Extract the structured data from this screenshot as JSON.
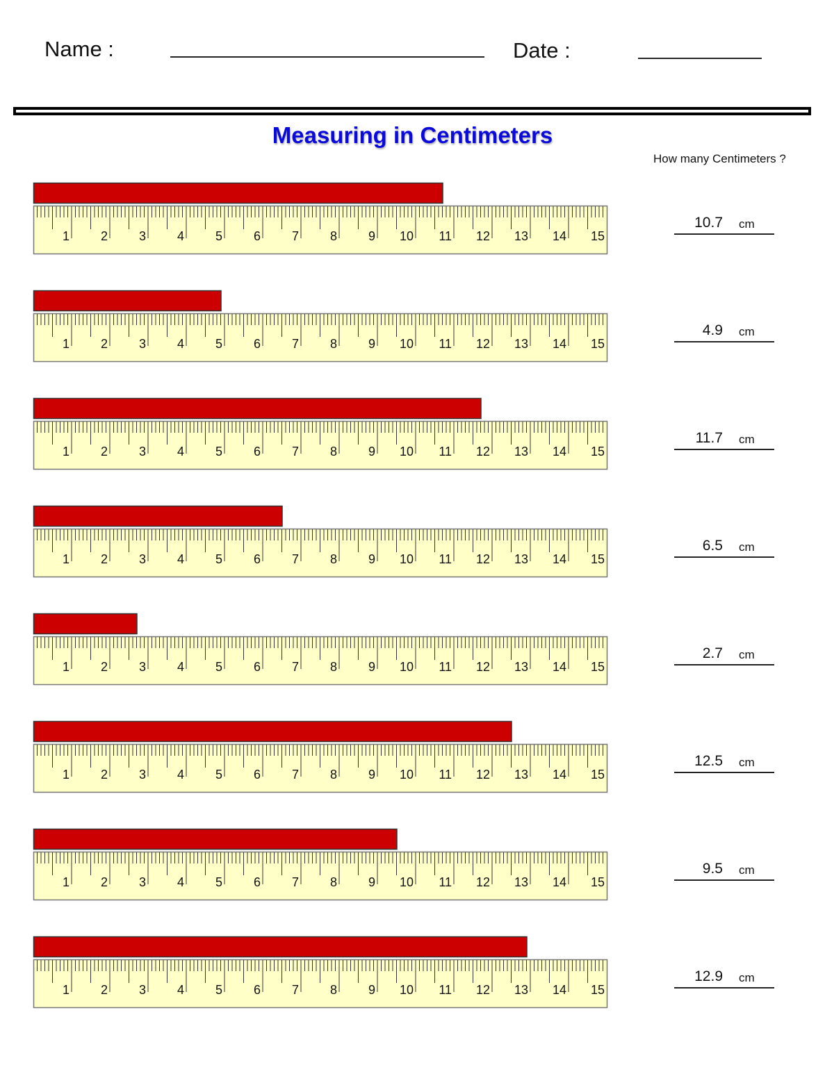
{
  "header": {
    "name_label": "Name :",
    "date_label": "Date :"
  },
  "title": "Measuring in Centimeters",
  "question": "How many Centimeters ?",
  "unit": "cm",
  "colors": {
    "bar": "#cc0000",
    "ruler": "#ffffc8",
    "title": "#0a0adc"
  },
  "ruler": {
    "max_cm": 15,
    "labels": [
      "1",
      "2",
      "3",
      "4",
      "5",
      "6",
      "7",
      "8",
      "9",
      "10",
      "11",
      "12",
      "13",
      "14",
      "15"
    ]
  },
  "items": [
    {
      "length_cm": 10.7,
      "answer": "10.7"
    },
    {
      "length_cm": 4.9,
      "answer": "4.9"
    },
    {
      "length_cm": 11.7,
      "answer": "11.7"
    },
    {
      "length_cm": 6.5,
      "answer": "6.5"
    },
    {
      "length_cm": 2.7,
      "answer": "2.7"
    },
    {
      "length_cm": 12.5,
      "answer": "12.5"
    },
    {
      "length_cm": 9.5,
      "answer": "9.5"
    },
    {
      "length_cm": 12.9,
      "answer": "12.9"
    }
  ]
}
